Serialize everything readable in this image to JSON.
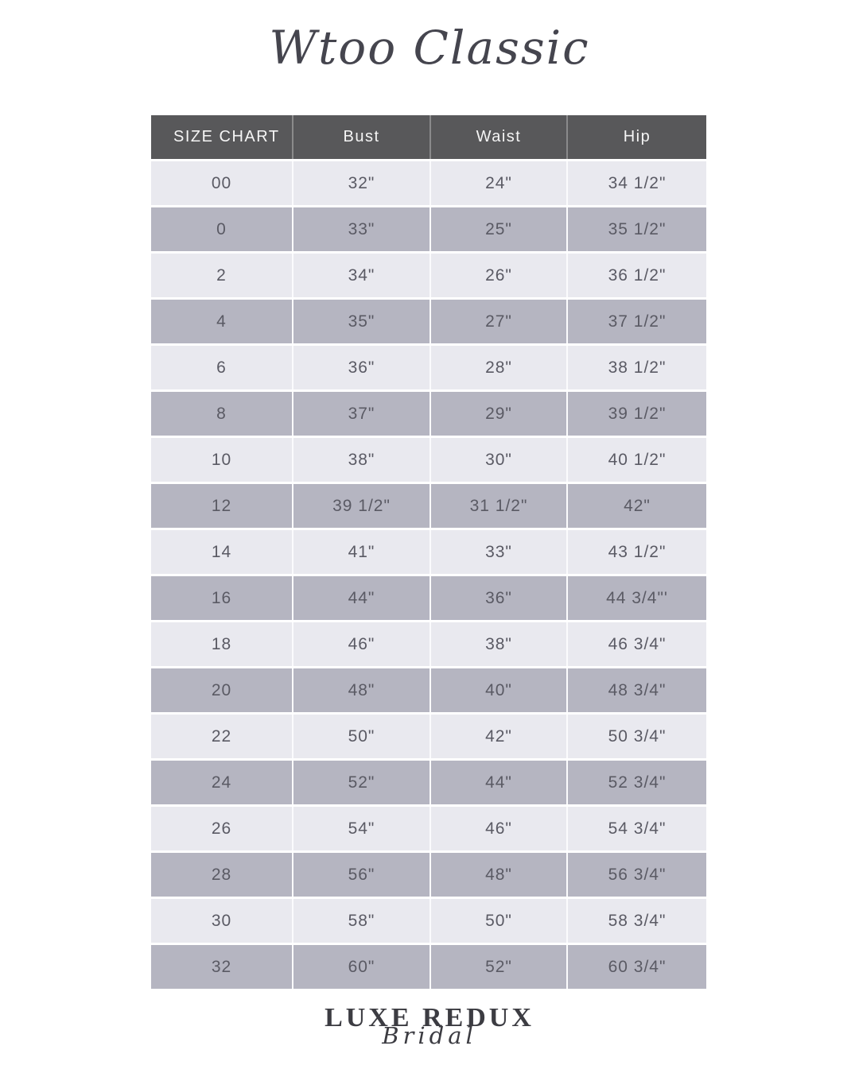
{
  "page": {
    "title": "Wtoo Classic"
  },
  "table": {
    "headers": [
      "SIZE CHART",
      "Bust",
      "Waist",
      "Hip"
    ],
    "rows": [
      [
        "00",
        "32\"",
        "24\"",
        "34 1/2\""
      ],
      [
        "0",
        "33\"",
        "25\"",
        "35 1/2\""
      ],
      [
        "2",
        "34\"",
        "26\"",
        "36 1/2\""
      ],
      [
        "4",
        "35\"",
        "27\"",
        "37 1/2\""
      ],
      [
        "6",
        "36\"",
        "28\"",
        "38 1/2\""
      ],
      [
        "8",
        "37\"",
        "29\"",
        "39 1/2\""
      ],
      [
        "10",
        "38\"",
        "30\"",
        "40 1/2\""
      ],
      [
        "12",
        "39 1/2\"",
        "31 1/2\"",
        "42\""
      ],
      [
        "14",
        "41\"",
        "33\"",
        "43 1/2\""
      ],
      [
        "16",
        "44\"",
        "36\"",
        "44 3/4\"'"
      ],
      [
        "18",
        "46\"",
        "38\"",
        "46 3/4\""
      ],
      [
        "20",
        "48\"",
        "40\"",
        "48 3/4\""
      ],
      [
        "22",
        "50\"",
        "42\"",
        "50 3/4\""
      ],
      [
        "24",
        "52\"",
        "44\"",
        "52 3/4\""
      ],
      [
        "26",
        "54\"",
        "46\"",
        "54 3/4\""
      ],
      [
        "28",
        "56\"",
        "48\"",
        "56 3/4\""
      ],
      [
        "30",
        "58\"",
        "50\"",
        "58 3/4\""
      ],
      [
        "32",
        "60\"",
        "52\"",
        "60 3/4\""
      ]
    ]
  },
  "footer": {
    "brand": "LUXE REDUX",
    "brand_sub": "Bridal"
  },
  "colors": {
    "header_bg": "#58585a",
    "header_text": "#f5f5f5",
    "row_light": "#e9e9ef",
    "row_dark": "#b5b5c1",
    "cell_text": "#5a5a64",
    "title_text": "#45454e",
    "logo_text": "#3c3c42"
  }
}
